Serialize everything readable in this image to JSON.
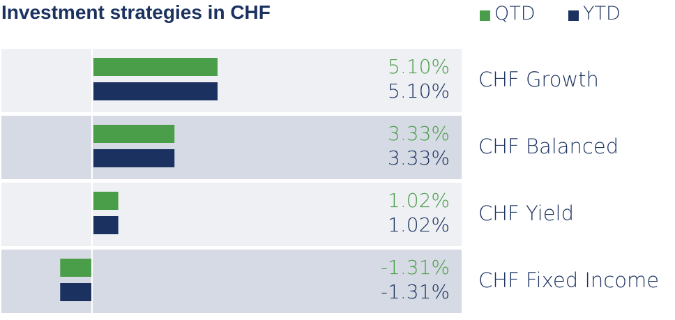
{
  "colors": {
    "qtd": "#4a9e4a",
    "ytd": "#1b3260",
    "row_light": "#eef0f4",
    "row_dark": "#d6dae4",
    "zero_line": "#ffffff"
  },
  "chart_data": {
    "type": "bar",
    "orientation": "horizontal",
    "title": "Investment strategies in CHF",
    "legend_position": "top-right",
    "grid": false,
    "xlim": [
      -1.31,
      5.1
    ],
    "categories": [
      "CHF Growth",
      "CHF Balanced",
      "CHF Yield",
      "CHF Fixed Income"
    ],
    "series": [
      {
        "name": "QTD",
        "values": [
          5.1,
          3.33,
          1.02,
          -1.31
        ],
        "labels": [
          "5.10%",
          "3.33%",
          "1.02%",
          "-1.31%"
        ]
      },
      {
        "name": "YTD",
        "values": [
          5.1,
          3.33,
          1.02,
          -1.31
        ],
        "labels": [
          "5.10%",
          "3.33%",
          "1.02%",
          "-1.31%"
        ]
      }
    ]
  }
}
